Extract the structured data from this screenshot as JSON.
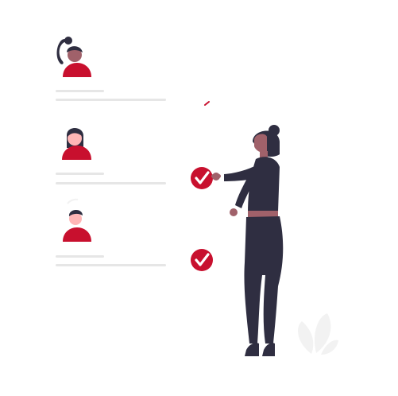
{
  "colors": {
    "accent": "#c8102e",
    "line": "#e6e6e6",
    "dark": "#2f2e41",
    "skin_dark": "#a0616a",
    "skin_light": "#ffb6b6",
    "plant": "#f2f2f2",
    "white": "#ffffff"
  },
  "profiles": [
    {
      "avatar": "avatar-ponytail",
      "checked": false
    },
    {
      "avatar": "avatar-long-hair",
      "checked": true
    },
    {
      "avatar": "avatar-short-hair",
      "checked": true
    }
  ],
  "icons": {
    "check": "check-circle-icon",
    "person": "person-standing-icon",
    "plant": "plant-icon"
  }
}
